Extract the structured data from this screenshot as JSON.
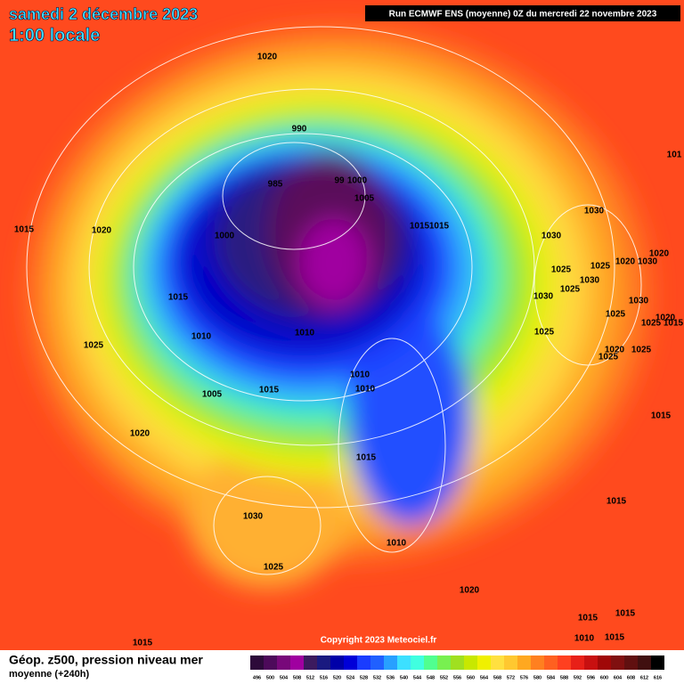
{
  "header": {
    "date": "samedi 2 décembre 2023",
    "time": "1:00 locale",
    "run": "Run ECMWF ENS (moyenne) 0Z du mercredi 22 novembre 2023"
  },
  "isobars": [
    "1020",
    "990",
    "985",
    "99",
    "1000",
    "1005",
    "1015",
    "1020",
    "1000",
    "1015",
    "1015",
    "1030",
    "1030",
    "1025",
    "1025",
    "1020",
    "1030",
    "1020",
    "1030",
    "1025",
    "1030",
    "1030",
    "1015",
    "1025",
    "1020",
    "1025",
    "1015",
    "1025",
    "1010",
    "1010",
    "1025",
    "1020",
    "1025",
    "1025",
    "1010",
    "1010",
    "1005",
    "1015",
    "101",
    "1015",
    "1020",
    "1015",
    "1015",
    "1030",
    "1010",
    "1025",
    "1020",
    "1015",
    "1015",
    "1015",
    "1010",
    "1015"
  ],
  "copyright": "Copyright 2023 Meteociel.fr",
  "footer": {
    "title": "Géop. z500, pression niveau mer",
    "subtitle": "moyenne  (+240h)"
  },
  "colorbar": {
    "values": [
      496,
      500,
      504,
      508,
      512,
      516,
      520,
      524,
      528,
      532,
      536,
      540,
      544,
      548,
      552,
      556,
      560,
      564,
      568,
      572,
      576,
      580,
      584,
      588,
      592,
      596,
      600,
      604,
      608,
      612,
      616
    ],
    "colors": [
      "#2d0a3a",
      "#4d0a5a",
      "#78087a",
      "#a000a0",
      "#3c1a5e",
      "#1a1a80",
      "#0000a8",
      "#0000d8",
      "#1a3cff",
      "#2060ff",
      "#28a0ff",
      "#3ce0ff",
      "#40ffe0",
      "#50ff90",
      "#78f050",
      "#a0e020",
      "#c8e800",
      "#f0f000",
      "#ffe040",
      "#ffc830",
      "#ffa820",
      "#ff8020",
      "#ff6020",
      "#ff4020",
      "#e82018",
      "#c81010",
      "#a00808",
      "#801010",
      "#601010",
      "#401010",
      "#000000"
    ]
  }
}
